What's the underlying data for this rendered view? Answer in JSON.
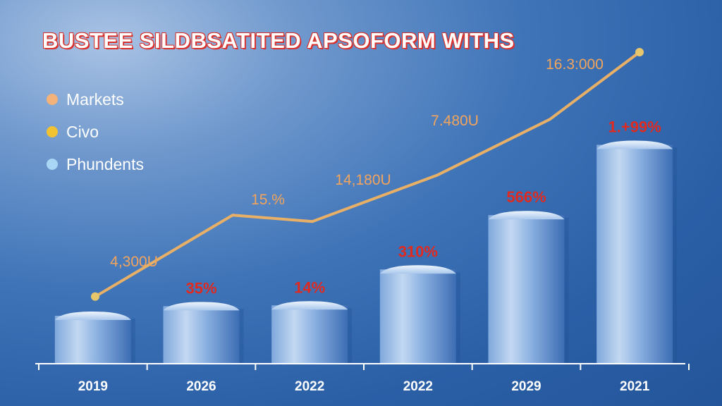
{
  "chart_data": {
    "type": "bar",
    "title": "BUSTEE SILDBSATITED APSOFORM WITHS",
    "categories": [
      "2019",
      "2026",
      "2022",
      "2022",
      "2029",
      "2021"
    ],
    "bar_values": [
      3.0,
      3.6,
      3.65,
      5.9,
      9.3,
      13.7
    ],
    "bar_labels": [
      "",
      "35%",
      "14%",
      "310%",
      "566%",
      "1.+99%"
    ],
    "line_series": {
      "values": [
        4.2,
        9.3,
        8.9,
        11.8,
        15.3,
        19.5
      ],
      "labels": [
        "4,300U",
        "15.%",
        "14,180U",
        "7.480U",
        "16.3:000",
        ""
      ]
    },
    "ylim": [
      0,
      21
    ],
    "legend": [
      {
        "label": "Markets",
        "color": "#f2b27a"
      },
      {
        "label": "Civo",
        "color": "#f1c232"
      },
      {
        "label": "Phundents",
        "color": "#a9d6f5"
      }
    ],
    "grid": false,
    "legend_position": "top-left",
    "colors": {
      "bar": "#5a8cd0",
      "line": "#e8b066",
      "bar_label": "#e02a20",
      "line_label": "#f2a45c",
      "title_shadow": "#d9302c"
    }
  }
}
